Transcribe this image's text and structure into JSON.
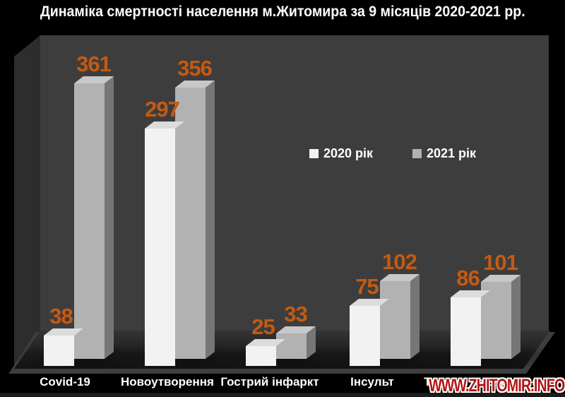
{
  "title": "Динаміка смертності населення м.Житомира за 9 місяців 2020-2021 рр.",
  "legend": {
    "items": [
      {
        "label": "2020 рік",
        "color": "#f2f2f2"
      },
      {
        "label": "2021 рік",
        "color": "#b2b2b2"
      }
    ]
  },
  "watermark": {
    "text": "WWW.ZHITOMIR.INFO",
    "color": "#b51414"
  },
  "chart_data": {
    "type": "bar",
    "style": "3d-clustered-columns",
    "title": "Динаміка смертності населення м.Житомира за 9 місяців 2020-2021 рр.",
    "categories": [
      "Covid-19",
      "Новоутворення",
      "Гострий інфаркт",
      "Інсульт",
      "Травми та отруєння"
    ],
    "series": [
      {
        "name": "2020 рік",
        "color": "#f2f2f2",
        "top_color": "#dcdcdc",
        "side_color": "#cfcfcf",
        "values": [
          38,
          297,
          25,
          75,
          86
        ]
      },
      {
        "name": "2021 рік",
        "color": "#b2b2b2",
        "top_color": "#c8c8c8",
        "side_color": "#767676",
        "values": [
          361,
          356,
          33,
          102,
          101
        ]
      }
    ],
    "data_labels": [
      [
        38,
        297,
        25,
        75,
        86
      ],
      [
        361,
        356,
        33,
        102,
        101
      ]
    ],
    "value_label_color": "#c55a11",
    "background_color": "#000000",
    "wall_color": "#3d3d3d",
    "side_wall_color": "#2d2d2d",
    "axes_visible": false,
    "gridlines": false,
    "legend_position": "center-right",
    "ylim": [
      0,
      400
    ]
  }
}
